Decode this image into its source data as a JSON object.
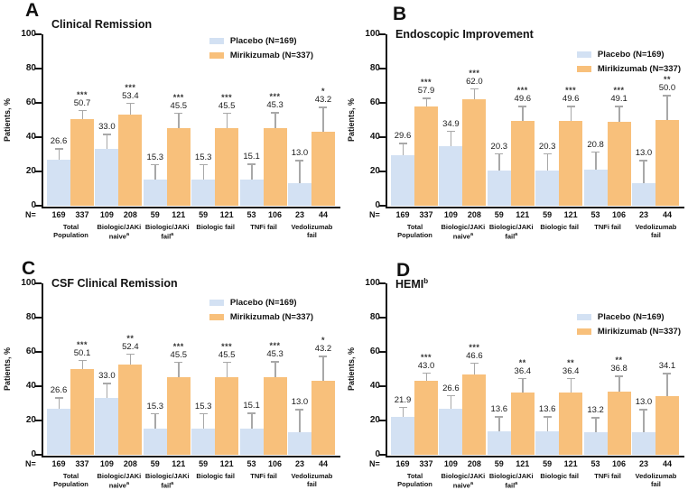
{
  "figure": {
    "ylabel": "Patients, %",
    "ylim": [
      0,
      100
    ],
    "yticks": [
      0,
      20,
      40,
      60,
      80,
      100
    ],
    "legend": [
      {
        "label": "Placebo (N=169)",
        "color": "#d3e1f3"
      },
      {
        "label": "Mirikizumab (N=337)",
        "color": "#f8c07b"
      }
    ],
    "colors": {
      "placebo": "#d3e1f3",
      "mirikizumab": "#f8c07b",
      "error_bar": "#a8a8a8",
      "axis": "#151515"
    },
    "n_prefix": "N=",
    "groups": [
      {
        "n": [
          "169",
          "337"
        ],
        "label_lines": [
          "Total",
          "Population"
        ],
        "sup": ""
      },
      {
        "n": [
          "109",
          "208"
        ],
        "label_lines": [
          "Biologic/JAKi",
          "naive"
        ],
        "sup": "a"
      },
      {
        "n": [
          "59",
          "121"
        ],
        "label_lines": [
          "Biologic/JAKi",
          "fail"
        ],
        "sup": "a"
      },
      {
        "n": [
          "59",
          "121"
        ],
        "label_lines": [
          "Biologic fail"
        ],
        "sup": ""
      },
      {
        "n": [
          "53",
          "106"
        ],
        "label_lines": [
          "TNFi fail"
        ],
        "sup": ""
      },
      {
        "n": [
          "23",
          "44"
        ],
        "label_lines": [
          "Vedolizumab",
          "fail"
        ],
        "sup": ""
      }
    ]
  },
  "chart_data": [
    {
      "panel": "A",
      "type": "bar",
      "title": "Clinical Remission",
      "title_sup": "",
      "ylabel": "Patients, %",
      "ylim": [
        0,
        100
      ],
      "categories": [
        "Total Population",
        "Biologic/JAKi naive (a)",
        "Biologic/JAKi fail (a)",
        "Biologic fail",
        "TNFi fail",
        "Vedolizumab fail"
      ],
      "n_per_group": [
        [
          169,
          337
        ],
        [
          109,
          208
        ],
        [
          59,
          121
        ],
        [
          59,
          121
        ],
        [
          53,
          106
        ],
        [
          23,
          44
        ]
      ],
      "series": [
        {
          "name": "Placebo (N=169)",
          "values": [
            "26.6",
            "33.0",
            "15.3",
            "15.3",
            "15.1",
            "13.0"
          ],
          "err_upper": [
            6.9,
            9.0,
            9.0,
            9.0,
            9.5,
            13.8
          ]
        },
        {
          "name": "Mirikizumab (N=337)",
          "values": [
            "50.7",
            "53.4",
            "45.5",
            "45.5",
            "45.3",
            "43.2"
          ],
          "err_upper": [
            5.3,
            6.8,
            8.8,
            8.8,
            9.2,
            14.5
          ],
          "significance": [
            "***",
            "***",
            "***",
            "***",
            "***",
            "*"
          ]
        }
      ]
    },
    {
      "panel": "B",
      "type": "bar",
      "title": "Endoscopic Improvement",
      "title_sup": "",
      "ylabel": "Patients, %",
      "ylim": [
        0,
        100
      ],
      "categories": [
        "Total Population",
        "Biologic/JAKi naive (a)",
        "Biologic/JAKi fail (a)",
        "Biologic fail",
        "TNFi fail",
        "Vedolizumab fail"
      ],
      "n_per_group": [
        [
          169,
          337
        ],
        [
          109,
          208
        ],
        [
          59,
          121
        ],
        [
          59,
          121
        ],
        [
          53,
          106
        ],
        [
          23,
          44
        ]
      ],
      "series": [
        {
          "name": "Placebo (N=169)",
          "values": [
            "29.6",
            "34.9",
            "20.3",
            "20.3",
            "20.8",
            "13.0"
          ],
          "err_upper": [
            7.0,
            8.9,
            10.3,
            10.3,
            10.9,
            13.8
          ]
        },
        {
          "name": "Mirikizumab (N=337)",
          "values": [
            "57.9",
            "62.0",
            "49.6",
            "49.6",
            "49.1",
            "50.0"
          ],
          "err_upper": [
            5.2,
            6.6,
            8.8,
            8.8,
            9.3,
            14.5
          ],
          "significance": [
            "***",
            "***",
            "***",
            "***",
            "***",
            "**"
          ]
        }
      ]
    },
    {
      "panel": "C",
      "type": "bar",
      "title": "CSF Clinical Remission",
      "title_sup": "",
      "ylabel": "Patients, %",
      "ylim": [
        0,
        100
      ],
      "categories": [
        "Total Population",
        "Biologic/JAKi naive (a)",
        "Biologic/JAKi fail (a)",
        "Biologic fail",
        "TNFi fail",
        "Vedolizumab fail"
      ],
      "n_per_group": [
        [
          169,
          337
        ],
        [
          109,
          208
        ],
        [
          59,
          121
        ],
        [
          59,
          121
        ],
        [
          53,
          106
        ],
        [
          23,
          44
        ]
      ],
      "series": [
        {
          "name": "Placebo (N=169)",
          "values": [
            "26.6",
            "33.0",
            "15.3",
            "15.3",
            "15.1",
            "13.0"
          ],
          "err_upper": [
            6.9,
            9.0,
            9.0,
            9.0,
            9.5,
            13.8
          ]
        },
        {
          "name": "Mirikizumab (N=337)",
          "values": [
            "50.1",
            "52.4",
            "45.5",
            "45.5",
            "45.3",
            "43.2"
          ],
          "err_upper": [
            5.4,
            6.7,
            8.8,
            8.8,
            9.2,
            14.5
          ],
          "significance": [
            "***",
            "**",
            "***",
            "***",
            "***",
            "*"
          ]
        }
      ]
    },
    {
      "panel": "D",
      "type": "bar",
      "title": "HEMI",
      "title_sup": "b",
      "ylabel": "Patients, %",
      "ylim": [
        0,
        100
      ],
      "categories": [
        "Total Population",
        "Biologic/JAKi naive (a)",
        "Biologic/JAKi fail (a)",
        "Biologic fail",
        "TNFi fail",
        "Vedolizumab fail"
      ],
      "n_per_group": [
        [
          169,
          337
        ],
        [
          109,
          208
        ],
        [
          59,
          121
        ],
        [
          59,
          121
        ],
        [
          53,
          106
        ],
        [
          23,
          44
        ]
      ],
      "series": [
        {
          "name": "Placebo (N=169)",
          "values": [
            "21.9",
            "26.6",
            "13.6",
            "13.6",
            "13.2",
            "13.0"
          ],
          "err_upper": [
            6.1,
            8.4,
            8.8,
            8.8,
            8.9,
            13.8
          ]
        },
        {
          "name": "Mirikizumab (N=337)",
          "values": [
            "43.0",
            "46.6",
            "36.4",
            "36.4",
            "36.8",
            "34.1"
          ],
          "err_upper": [
            5.1,
            7.3,
            8.6,
            8.6,
            9.3,
            13.8
          ],
          "significance": [
            "***",
            "***",
            "**",
            "**",
            "**",
            ""
          ]
        }
      ]
    }
  ]
}
